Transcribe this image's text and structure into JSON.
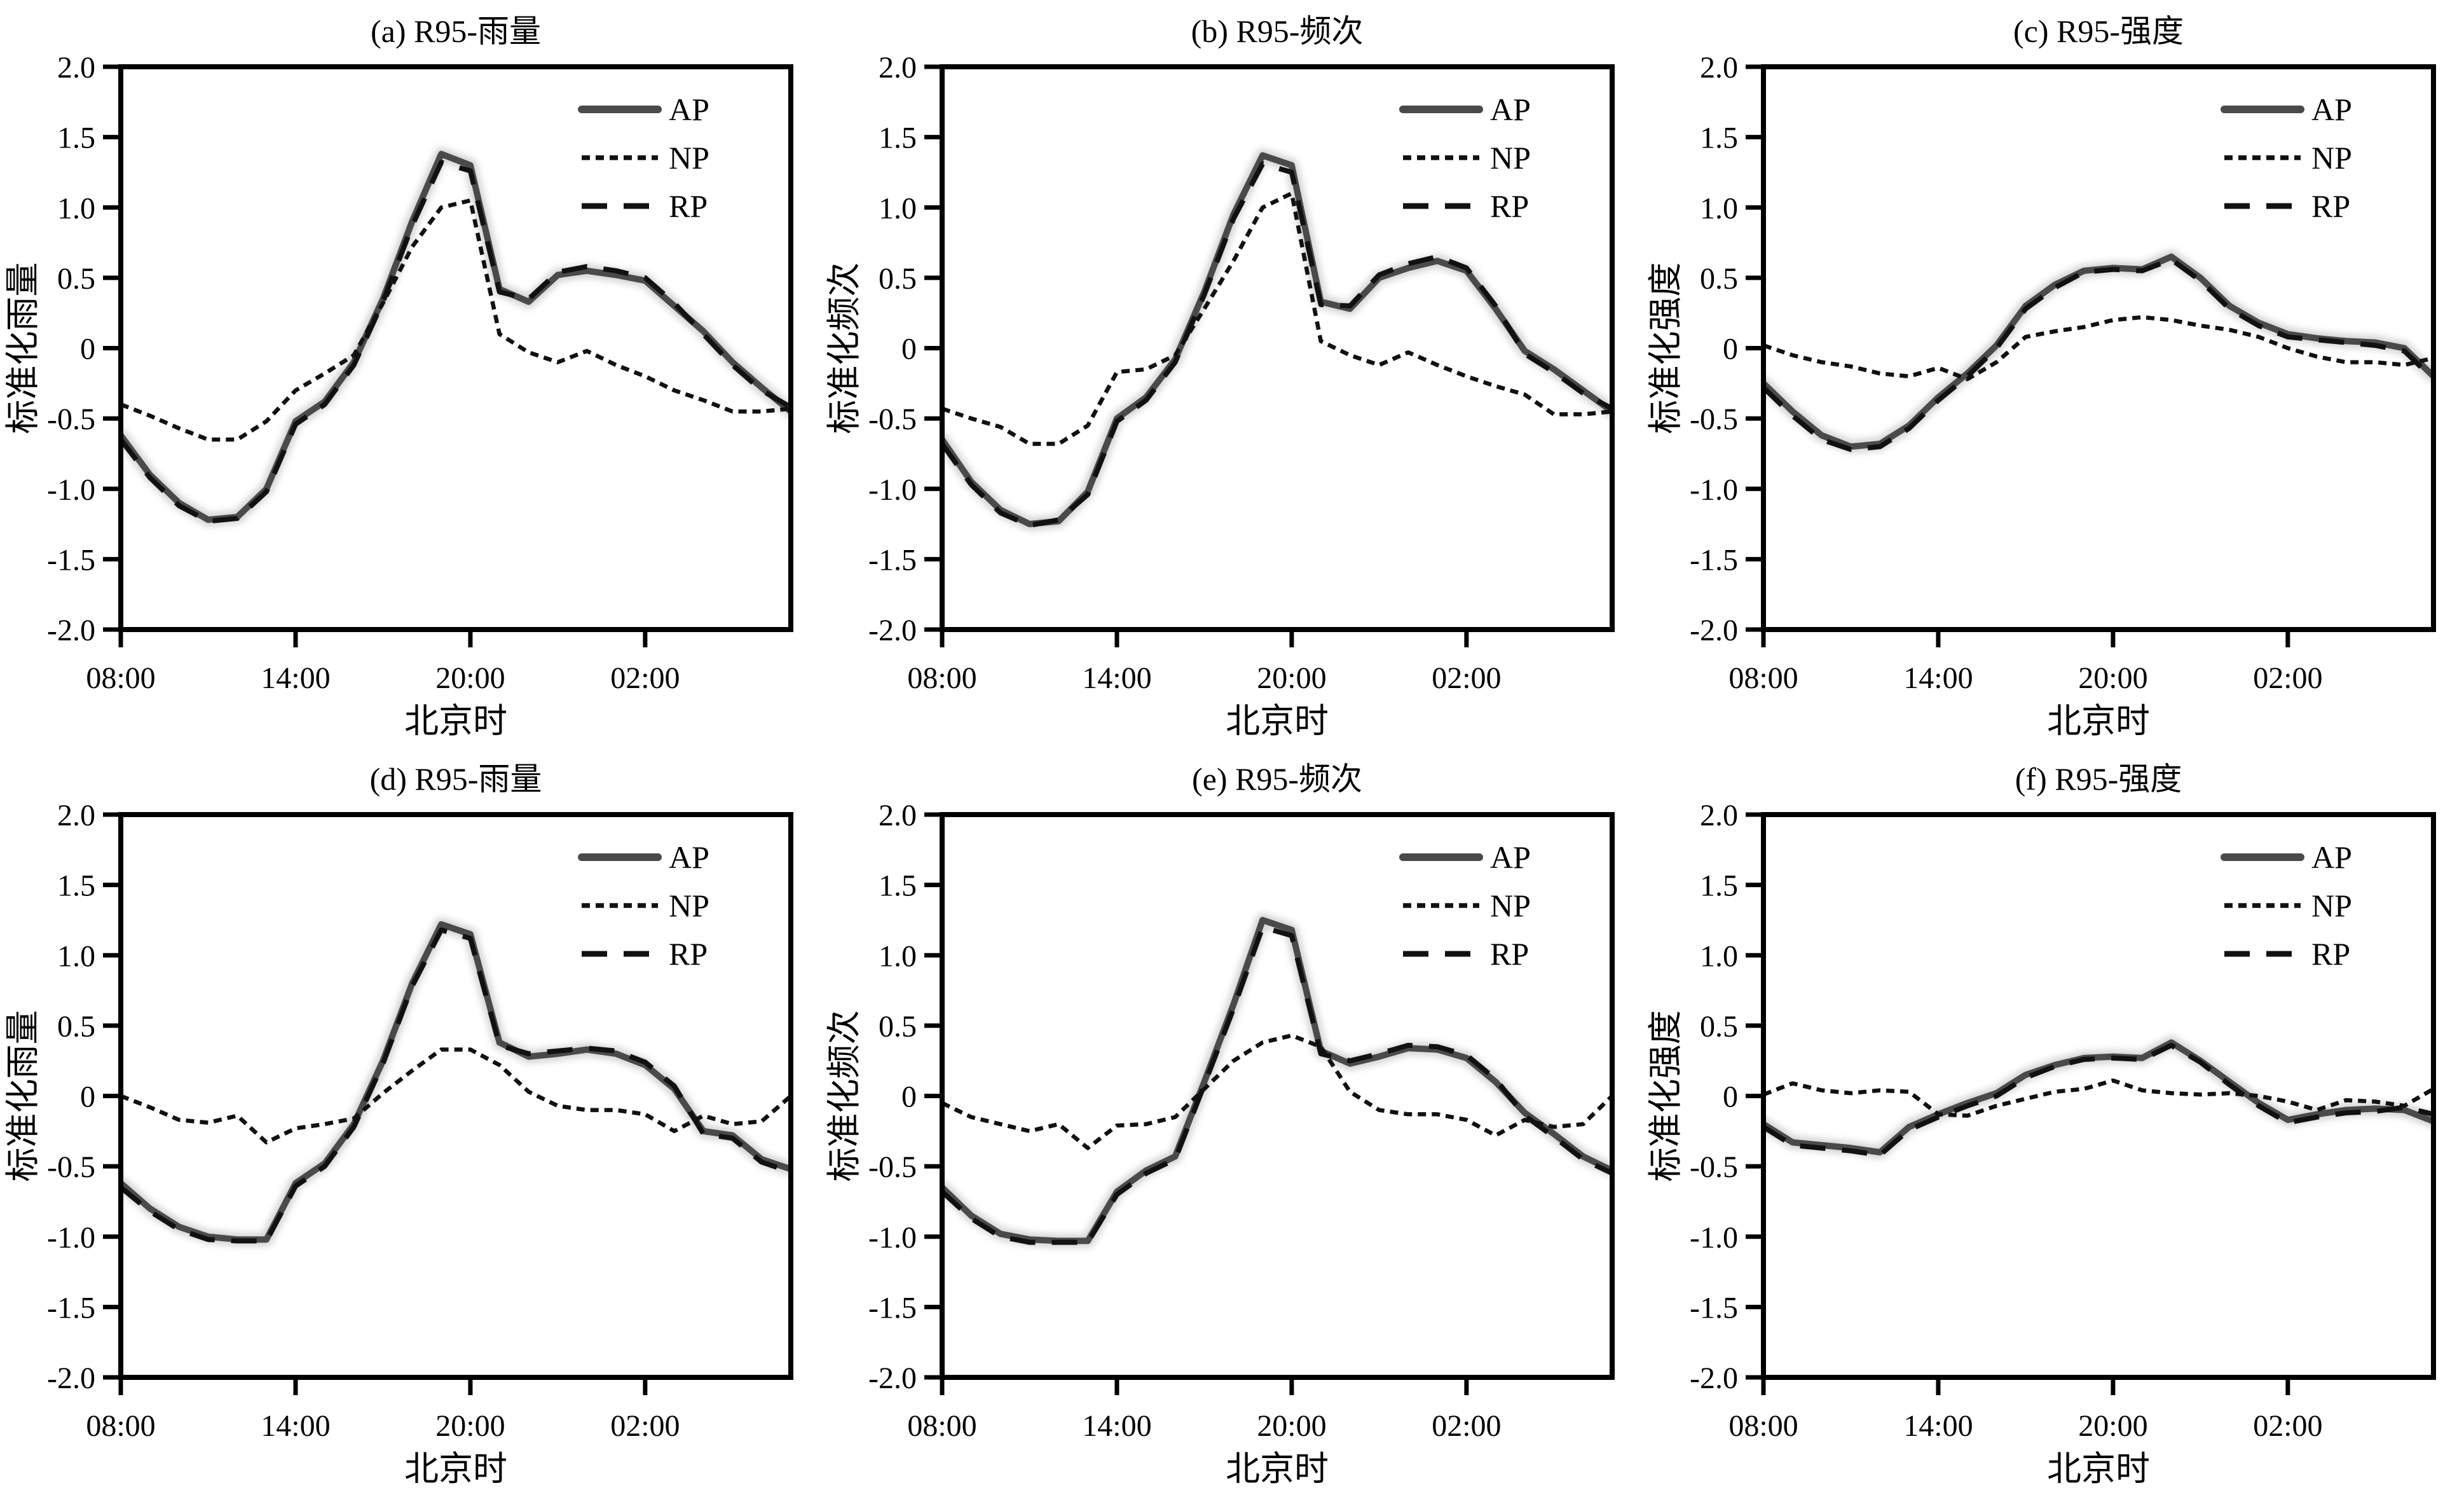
{
  "figure": {
    "legend_labels": [
      "AP",
      "NP",
      "RP"
    ],
    "x_axis_label": "北京时",
    "x_tick_labels": [
      "08:00",
      "14:00",
      "20:00",
      "02:00"
    ],
    "x_tick_indices": [
      0,
      6,
      12,
      18
    ],
    "y_tick_labels": [
      "2.0",
      "1.5",
      "1.0",
      "0.5",
      "0",
      "-0.5",
      "-1.0",
      "-1.5",
      "-2.0"
    ],
    "y_tick_values": [
      2.0,
      1.5,
      1.0,
      0.5,
      0,
      -0.5,
      -1.0,
      -1.5,
      -2.0
    ],
    "ylim": [
      -2.0,
      2.0
    ],
    "colors": {
      "ap": "#4a4a4a",
      "np": "#111111",
      "rp": "#111111",
      "halo": "#b5b5b5",
      "axis": "#000000"
    },
    "x_categories": [
      "08:00",
      "09:00",
      "10:00",
      "11:00",
      "12:00",
      "13:00",
      "14:00",
      "15:00",
      "16:00",
      "17:00",
      "18:00",
      "19:00",
      "20:00",
      "21:00",
      "22:00",
      "23:00",
      "00:00",
      "01:00",
      "02:00",
      "03:00",
      "04:00",
      "05:00",
      "06:00",
      "07:00"
    ]
  },
  "chart_data": [
    {
      "id": "a",
      "type": "line",
      "title": "(a) R95-雨量",
      "ylabel": "标准化雨量",
      "xlabel": "北京时",
      "ylim": [
        -2.0,
        2.0
      ],
      "grid": false,
      "legend_position": "top-right",
      "series": [
        {
          "name": "AP",
          "values": [
            -0.62,
            -0.9,
            -1.1,
            -1.22,
            -1.2,
            -1.0,
            -0.52,
            -0.38,
            -0.1,
            0.35,
            0.9,
            1.38,
            1.3,
            0.42,
            0.33,
            0.52,
            0.55,
            0.52,
            0.48,
            0.3,
            0.12,
            -0.1,
            -0.28,
            -0.45
          ]
        },
        {
          "name": "NP",
          "values": [
            -0.4,
            -0.48,
            -0.57,
            -0.65,
            -0.65,
            -0.52,
            -0.3,
            -0.18,
            -0.05,
            0.32,
            0.72,
            1.0,
            1.05,
            0.1,
            -0.03,
            -0.1,
            -0.02,
            -0.12,
            -0.2,
            -0.3,
            -0.37,
            -0.45,
            -0.45,
            -0.43
          ]
        },
        {
          "name": "RP",
          "values": [
            -0.65,
            -0.92,
            -1.12,
            -1.23,
            -1.21,
            -1.02,
            -0.54,
            -0.4,
            -0.12,
            0.33,
            0.87,
            1.32,
            1.26,
            0.4,
            0.35,
            0.54,
            0.58,
            0.55,
            0.5,
            0.32,
            0.1,
            -0.12,
            -0.3,
            -0.42
          ]
        }
      ]
    },
    {
      "id": "b",
      "type": "line",
      "title": "(b) R95-频次",
      "ylabel": "标准化频次",
      "xlabel": "北京时",
      "ylim": [
        -2.0,
        2.0
      ],
      "grid": false,
      "legend_position": "top-right",
      "series": [
        {
          "name": "AP",
          "values": [
            -0.65,
            -0.95,
            -1.15,
            -1.25,
            -1.23,
            -1.02,
            -0.5,
            -0.35,
            -0.08,
            0.4,
            0.95,
            1.37,
            1.3,
            0.33,
            0.28,
            0.5,
            0.57,
            0.62,
            0.55,
            0.28,
            -0.02,
            -0.15,
            -0.3,
            -0.45
          ]
        },
        {
          "name": "NP",
          "values": [
            -0.43,
            -0.5,
            -0.56,
            -0.68,
            -0.68,
            -0.55,
            -0.17,
            -0.15,
            -0.05,
            0.28,
            0.62,
            1.0,
            1.1,
            0.05,
            -0.05,
            -0.12,
            -0.03,
            -0.12,
            -0.2,
            -0.27,
            -0.33,
            -0.47,
            -0.47,
            -0.45
          ]
        },
        {
          "name": "RP",
          "values": [
            -0.68,
            -0.97,
            -1.17,
            -1.26,
            -1.22,
            -1.04,
            -0.52,
            -0.37,
            -0.1,
            0.38,
            0.92,
            1.31,
            1.25,
            0.31,
            0.3,
            0.52,
            0.6,
            0.65,
            0.57,
            0.3,
            -0.04,
            -0.17,
            -0.32,
            -0.43
          ]
        }
      ]
    },
    {
      "id": "c",
      "type": "line",
      "title": "(c) R95-强度",
      "ylabel": "标准化强度",
      "xlabel": "北京时",
      "ylim": [
        -2.0,
        2.0
      ],
      "grid": false,
      "legend_position": "top-right",
      "series": [
        {
          "name": "AP",
          "values": [
            -0.25,
            -0.45,
            -0.62,
            -0.7,
            -0.68,
            -0.55,
            -0.35,
            -0.18,
            0.02,
            0.3,
            0.45,
            0.55,
            0.57,
            0.56,
            0.65,
            0.5,
            0.3,
            0.18,
            0.1,
            0.07,
            0.05,
            0.04,
            0.0,
            -0.2
          ]
        },
        {
          "name": "NP",
          "values": [
            0.02,
            -0.05,
            -0.1,
            -0.13,
            -0.18,
            -0.2,
            -0.14,
            -0.22,
            -0.1,
            0.08,
            0.12,
            0.15,
            0.2,
            0.22,
            0.2,
            0.16,
            0.13,
            0.08,
            0.0,
            -0.06,
            -0.1,
            -0.1,
            -0.12,
            -0.07
          ]
        },
        {
          "name": "RP",
          "values": [
            -0.28,
            -0.48,
            -0.65,
            -0.72,
            -0.7,
            -0.57,
            -0.37,
            -0.2,
            0.0,
            0.28,
            0.43,
            0.54,
            0.56,
            0.55,
            0.63,
            0.48,
            0.28,
            0.16,
            0.08,
            0.06,
            0.04,
            0.02,
            -0.02,
            -0.22
          ]
        }
      ]
    },
    {
      "id": "d",
      "type": "line",
      "title": "(d) R95-雨量",
      "ylabel": "标准化雨量",
      "xlabel": "北京时",
      "ylim": [
        -2.0,
        2.0
      ],
      "grid": false,
      "legend_position": "top-right",
      "series": [
        {
          "name": "AP",
          "values": [
            -0.62,
            -0.8,
            -0.93,
            -1.0,
            -1.02,
            -1.02,
            -0.62,
            -0.48,
            -0.2,
            0.25,
            0.8,
            1.22,
            1.15,
            0.38,
            0.28,
            0.3,
            0.33,
            0.3,
            0.22,
            0.05,
            -0.25,
            -0.28,
            -0.45,
            -0.52
          ]
        },
        {
          "name": "NP",
          "values": [
            0.0,
            -0.08,
            -0.17,
            -0.19,
            -0.14,
            -0.33,
            -0.23,
            -0.2,
            -0.16,
            0.02,
            0.18,
            0.33,
            0.33,
            0.22,
            0.03,
            -0.07,
            -0.1,
            -0.1,
            -0.13,
            -0.25,
            -0.14,
            -0.2,
            -0.18,
            0.0
          ]
        },
        {
          "name": "RP",
          "values": [
            -0.65,
            -0.82,
            -0.95,
            -1.02,
            -1.03,
            -1.03,
            -0.64,
            -0.5,
            -0.22,
            0.23,
            0.78,
            1.18,
            1.12,
            0.36,
            0.3,
            0.32,
            0.34,
            0.32,
            0.24,
            0.07,
            -0.27,
            -0.3,
            -0.47,
            -0.54
          ]
        }
      ]
    },
    {
      "id": "e",
      "type": "line",
      "title": "(e) R95-频次",
      "ylabel": "标准化频次",
      "xlabel": "北京时",
      "ylim": [
        -2.0,
        2.0
      ],
      "grid": false,
      "legend_position": "top-right",
      "series": [
        {
          "name": "AP",
          "values": [
            -0.65,
            -0.85,
            -0.98,
            -1.02,
            -1.03,
            -1.03,
            -0.68,
            -0.53,
            -0.43,
            0.1,
            0.65,
            1.25,
            1.18,
            0.32,
            0.23,
            0.28,
            0.34,
            0.33,
            0.27,
            0.1,
            -0.12,
            -0.27,
            -0.43,
            -0.53
          ]
        },
        {
          "name": "NP",
          "values": [
            -0.05,
            -0.15,
            -0.2,
            -0.25,
            -0.2,
            -0.37,
            -0.21,
            -0.2,
            -0.15,
            0.05,
            0.25,
            0.38,
            0.43,
            0.35,
            0.03,
            -0.1,
            -0.13,
            -0.13,
            -0.17,
            -0.28,
            -0.17,
            -0.22,
            -0.2,
            0.0
          ]
        },
        {
          "name": "RP",
          "values": [
            -0.68,
            -0.87,
            -1.0,
            -1.04,
            -1.04,
            -1.04,
            -0.7,
            -0.55,
            -0.45,
            0.08,
            0.62,
            1.2,
            1.14,
            0.3,
            0.25,
            0.3,
            0.36,
            0.35,
            0.29,
            0.12,
            -0.14,
            -0.29,
            -0.45,
            -0.55
          ]
        }
      ]
    },
    {
      "id": "f",
      "type": "line",
      "title": "(f) R95-强度",
      "ylabel": "标准化强度",
      "xlabel": "北京时",
      "ylim": [
        -2.0,
        2.0
      ],
      "grid": false,
      "legend_position": "top-right",
      "series": [
        {
          "name": "AP",
          "values": [
            -0.2,
            -0.33,
            -0.35,
            -0.37,
            -0.4,
            -0.22,
            -0.13,
            -0.05,
            0.02,
            0.15,
            0.22,
            0.27,
            0.28,
            0.27,
            0.38,
            0.25,
            0.1,
            -0.05,
            -0.17,
            -0.13,
            -0.1,
            -0.09,
            -0.1,
            -0.18
          ]
        },
        {
          "name": "NP",
          "values": [
            0.01,
            0.09,
            0.04,
            0.02,
            0.04,
            0.03,
            -0.13,
            -0.14,
            -0.07,
            -0.02,
            0.03,
            0.05,
            0.11,
            0.04,
            0.02,
            0.01,
            0.02,
            0.0,
            -0.04,
            -0.1,
            -0.03,
            -0.04,
            -0.07,
            0.05
          ]
        },
        {
          "name": "RP",
          "values": [
            -0.22,
            -0.35,
            -0.37,
            -0.39,
            -0.42,
            -0.24,
            -0.15,
            -0.07,
            0.0,
            0.13,
            0.21,
            0.26,
            0.27,
            0.26,
            0.36,
            0.24,
            0.08,
            -0.07,
            -0.19,
            -0.15,
            -0.12,
            -0.11,
            -0.08,
            -0.13
          ]
        }
      ]
    }
  ]
}
